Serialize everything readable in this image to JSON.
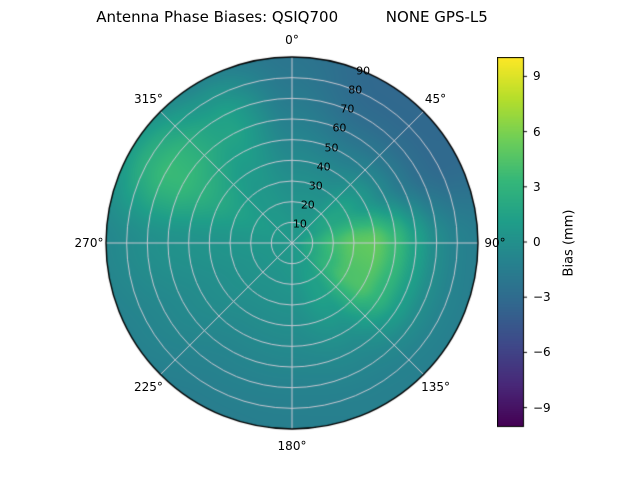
{
  "title": "Antenna Phase Biases: QSIQ700          NONE GPS-L5",
  "chart_data": {
    "type": "heatmap",
    "projection": "polar",
    "title": "Antenna Phase Biases: QSIQ700          NONE GPS-L5",
    "angles_deg": [
      0,
      45,
      90,
      135,
      180,
      225,
      270,
      315
    ],
    "angle_labels": [
      "0°",
      "45°",
      "90°",
      "135°",
      "180°",
      "225°",
      "270°",
      "315°"
    ],
    "radial_ticks": [
      10,
      20,
      30,
      40,
      50,
      60,
      70,
      80,
      90
    ],
    "radial_label_angle_deg": 22.5,
    "radial_max": 90,
    "azimuth_deg": [
      0,
      30,
      60,
      90,
      120,
      150,
      180,
      210,
      240,
      270,
      300,
      330
    ],
    "zenith_deg": [
      0,
      10,
      20,
      30,
      40,
      50,
      60,
      70,
      80,
      90
    ],
    "values": [
      [
        0.7,
        0.5,
        0.2,
        -0.1,
        -0.5,
        -0.9,
        -1.3,
        -1.7,
        -2.0,
        -2.2
      ],
      [
        0.7,
        0.6,
        0.3,
        -0.1,
        -0.7,
        -1.5,
        -2.3,
        -2.9,
        -3.2,
        -3.3
      ],
      [
        0.7,
        1.2,
        1.8,
        1.6,
        0.6,
        -0.7,
        -1.9,
        -2.8,
        -3.2,
        -3.2
      ],
      [
        0.7,
        2.2,
        3.8,
        4.9,
        5.1,
        3.6,
        1.4,
        -0.3,
        -1.1,
        -1.4
      ],
      [
        0.7,
        1.9,
        3.2,
        4.3,
        4.4,
        3.0,
        1.1,
        -0.3,
        -1.0,
        -1.3
      ],
      [
        0.7,
        1.0,
        1.3,
        1.3,
        0.8,
        0.1,
        -0.5,
        -0.9,
        -1.2,
        -1.3
      ],
      [
        0.7,
        0.6,
        0.4,
        0.1,
        -0.2,
        -0.5,
        -0.8,
        -1.1,
        -1.3,
        -1.4
      ],
      [
        0.7,
        0.5,
        0.2,
        0.0,
        -0.3,
        -0.6,
        -0.9,
        -1.1,
        -1.3,
        -1.5
      ],
      [
        0.7,
        0.5,
        0.3,
        0.1,
        -0.1,
        -0.3,
        -0.5,
        -0.7,
        -0.9,
        -1.1
      ],
      [
        0.7,
        0.6,
        0.5,
        0.4,
        0.3,
        0.2,
        0.1,
        -0.1,
        -0.4,
        -0.7
      ],
      [
        0.7,
        0.8,
        1.0,
        1.4,
        2.0,
        2.7,
        3.4,
        3.5,
        2.6,
        1.2
      ],
      [
        0.7,
        0.7,
        0.6,
        0.6,
        0.8,
        1.2,
        1.6,
        1.4,
        0.4,
        -0.8
      ]
    ],
    "colorbar": {
      "label": "Bias (mm)",
      "tick_values": [
        9,
        6,
        3,
        0,
        -3,
        -6,
        -9
      ],
      "tick_labels": [
        "9",
        "6",
        "3",
        "0",
        "−3",
        "−6",
        "−9"
      ],
      "vmin": -10,
      "vmax": 10,
      "colormap": "viridis",
      "colormap_stops": [
        "#440154",
        "#482878",
        "#3e4989",
        "#31688e",
        "#26828e",
        "#1f9e89",
        "#35b779",
        "#6ece58",
        "#b5de2b",
        "#fde725"
      ]
    },
    "grid": true,
    "layout": {
      "background": "#ffffff",
      "grid_color": "#c8c8d2",
      "outline_color": "#000000",
      "legend_position": "right-colorbar"
    }
  }
}
